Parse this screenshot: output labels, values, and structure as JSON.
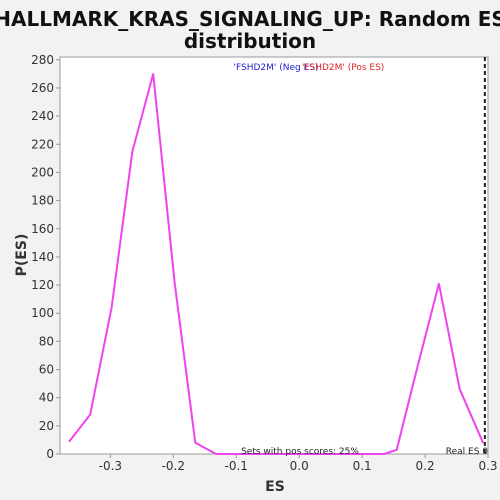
{
  "chart_data": {
    "type": "line",
    "title_lines": [
      "HALLMARK_KRAS_SIGNALING_UP: Random ES",
      "distribution"
    ],
    "xlabel": "ES",
    "ylabel": "P(ES)",
    "xlim": [
      -0.38,
      0.3
    ],
    "ylim": [
      0,
      282
    ],
    "x_ticks": [
      -0.3,
      -0.2,
      -0.1,
      0.0,
      0.1,
      0.2,
      0.3
    ],
    "x_tick_labels": [
      "-0.3",
      "-0.2",
      "-0.1",
      "0.0",
      "0.1",
      "0.2",
      "0.3"
    ],
    "y_ticks": [
      0,
      20,
      40,
      60,
      80,
      100,
      120,
      140,
      160,
      180,
      200,
      220,
      240,
      260,
      280
    ],
    "y_tick_labels": [
      "0",
      "20",
      "40",
      "60",
      "80",
      "100",
      "120",
      "140",
      "160",
      "180",
      "200",
      "220",
      "240",
      "260",
      "280"
    ],
    "grid": false,
    "series": [
      {
        "color": "#ee44ee",
        "x": [
          -0.365,
          -0.332,
          -0.298,
          -0.265,
          -0.232,
          -0.198,
          -0.165,
          -0.132,
          -0.098,
          -0.065,
          -0.032,
          0.002,
          0.035,
          0.068,
          0.102,
          0.135,
          0.155,
          0.188,
          0.222,
          0.255,
          0.292
        ],
        "y": [
          9,
          28,
          104,
          215,
          270,
          122,
          8,
          0,
          0,
          0,
          0,
          0,
          0,
          0,
          0,
          0,
          3,
          62,
          121,
          46,
          8
        ]
      }
    ],
    "legend": {
      "part1": "'FSHD2M' (Neg ES)",
      "part2": "'FSHD2M' (Pos ES)",
      "part1_color": "#2222cc",
      "part2_color": "#dd2222",
      "placement": "top-center"
    },
    "reference_line": {
      "x": 0.295,
      "style": "dashed",
      "color": "#222222",
      "label": "Real ES 0"
    },
    "annotation": "Sets with pos scores: 25%"
  }
}
